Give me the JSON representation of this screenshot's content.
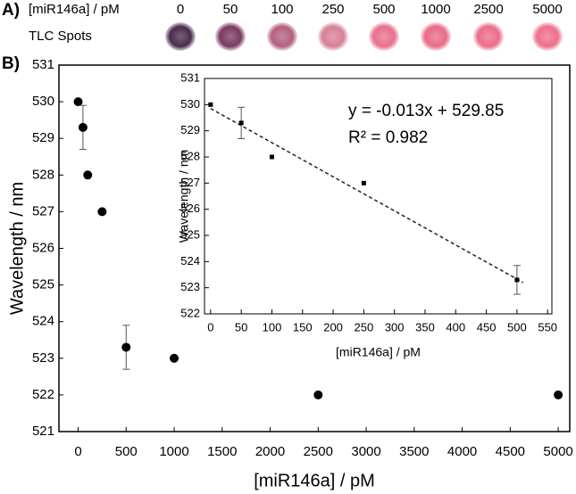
{
  "panel_a": {
    "label": "A)",
    "axis_label": "[miR146a] / pM",
    "row_label": "TLC Spots",
    "concentrations": [
      "0",
      "50",
      "100",
      "250",
      "500",
      "1000",
      "2500",
      "5000"
    ],
    "spot_colors": [
      "#4a2c4e",
      "#7a3a62",
      "#b2607e",
      "#d88098",
      "#e86f8e",
      "#ea6a88",
      "#ec6d8a",
      "#ee6f8c"
    ]
  },
  "panel_b_label": "B)",
  "chart_data": [
    {
      "type": "scatter",
      "x_label": "[miR146a] / pM",
      "y_label": "Wavelength / nm",
      "x": [
        0,
        50,
        100,
        250,
        500,
        1000,
        2500,
        5000
      ],
      "series": [
        {
          "name": "Wavelength",
          "color": "#000000",
          "values": [
            530,
            529.3,
            528,
            527,
            523.3,
            523,
            522,
            522
          ],
          "errors": [
            null,
            0.6,
            null,
            null,
            0.6,
            null,
            null,
            null
          ]
        }
      ],
      "xlim": [
        -200,
        5120
      ],
      "xticks": [
        0,
        500,
        1000,
        1500,
        2000,
        2500,
        3000,
        3500,
        4000,
        4500,
        5000
      ],
      "ylim": [
        521,
        531
      ],
      "yticks": [
        521,
        522,
        523,
        524,
        525,
        526,
        527,
        528,
        529,
        530,
        531
      ]
    },
    {
      "type": "scatter",
      "x_label": "[miR146a] / pM",
      "y_label": "Wavelength / nm",
      "x": [
        0,
        50,
        100,
        250,
        500
      ],
      "series": [
        {
          "name": "Wavelength",
          "color": "#000000",
          "values": [
            530,
            529.3,
            528,
            527,
            523.3
          ],
          "errors": [
            null,
            0.6,
            null,
            null,
            0.55
          ]
        }
      ],
      "fit": {
        "x": [
          0,
          510
        ],
        "y": [
          529.85,
          523.2
        ]
      },
      "annotations": [
        "y = -0.013x + 529.85",
        "R² = 0.982"
      ],
      "xlim": [
        -10,
        557
      ],
      "xticks": [
        0,
        50,
        100,
        150,
        200,
        250,
        300,
        350,
        400,
        450,
        500,
        550
      ],
      "ylim": [
        522,
        531
      ],
      "yticks": [
        522,
        523,
        524,
        525,
        526,
        527,
        528,
        529,
        530,
        531
      ]
    }
  ]
}
